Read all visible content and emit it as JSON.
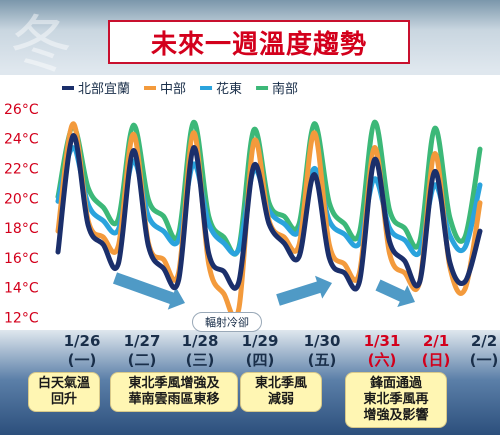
{
  "background_char": "冬",
  "title": "未來一週溫度趨勢",
  "radiation_label": "輻射冷卻",
  "days": [
    {
      "date": "1/26",
      "weekday": "(一)",
      "red": false
    },
    {
      "date": "1/27",
      "weekday": "(二)",
      "red": false
    },
    {
      "date": "1/28",
      "weekday": "(三)",
      "red": false
    },
    {
      "date": "1/29",
      "weekday": "(四)",
      "red": false
    },
    {
      "date": "1/30",
      "weekday": "(五)",
      "red": false
    },
    {
      "date": "1/31",
      "weekday": "(六)",
      "red": true
    },
    {
      "date": "2/1",
      "weekday": "(日)",
      "red": true
    },
    {
      "date": "2/2",
      "weekday": "(一)",
      "red": false
    }
  ],
  "notes": [
    {
      "text": "白天氣溫\n回升"
    },
    {
      "text": "東北季風增強及\n華南雲雨區東移"
    },
    {
      "text": "東北季風\n減弱"
    },
    {
      "text": "鋒面通過\n東北季風再\n增強及影響"
    }
  ],
  "chart_data": {
    "type": "line",
    "ylim": [
      11.5,
      27
    ],
    "yticks": [
      "26°C",
      "24°C",
      "22°C",
      "20°C",
      "18°C",
      "16°C",
      "14°C",
      "12°C"
    ],
    "ytick_values": [
      26,
      24,
      22,
      20,
      18,
      16,
      14,
      12
    ],
    "x_range": [
      0,
      7
    ],
    "legend_position": "top-left",
    "series": [
      {
        "name": "北部宜蘭",
        "color": "#1b2f6b",
        "x": [
          0,
          0.25,
          0.5,
          0.75,
          1.0,
          1.25,
          1.5,
          1.75,
          2.0,
          2.25,
          2.5,
          2.75,
          3.0,
          3.25,
          3.5,
          3.75,
          4.0,
          4.25,
          4.5,
          4.75,
          5.0,
          5.25,
          5.5,
          5.75,
          6.0,
          6.25,
          6.5,
          6.75,
          7.0
        ],
        "y": [
          16.4,
          24.2,
          18.2,
          16.9,
          15.6,
          23.2,
          16.8,
          15.3,
          14.5,
          23.4,
          16.3,
          15.1,
          14.4,
          22.2,
          18.3,
          17.0,
          16.1,
          21.6,
          16.0,
          15.0,
          14.4,
          22.6,
          17.1,
          15.8,
          14.4,
          21.8,
          15.7,
          14.4,
          17.8
        ]
      },
      {
        "name": "中部",
        "color": "#f39a3c",
        "x": [
          0,
          0.25,
          0.5,
          0.75,
          1.0,
          1.25,
          1.5,
          1.75,
          2.0,
          2.25,
          2.5,
          2.75,
          3.0,
          3.25,
          3.5,
          3.75,
          4.0,
          4.25,
          4.5,
          4.75,
          5.0,
          5.25,
          5.5,
          5.75,
          6.0,
          6.25,
          6.5,
          6.75,
          7.0
        ],
        "y": [
          17.8,
          25.0,
          18.5,
          17.4,
          16.8,
          24.3,
          17.0,
          15.9,
          15.0,
          24.4,
          15.6,
          13.6,
          12.6,
          23.8,
          18.5,
          17.4,
          16.9,
          24.4,
          16.9,
          15.6,
          15.0,
          23.4,
          16.3,
          15.0,
          14.4,
          23.0,
          15.4,
          13.9,
          19.7
        ]
      },
      {
        "name": "花東",
        "color": "#2aa3dd",
        "x": [
          0,
          0.25,
          0.5,
          0.75,
          1.0,
          1.25,
          1.5,
          1.75,
          2.0,
          2.25,
          2.5,
          2.75,
          3.0,
          3.25,
          3.5,
          3.75,
          4.0,
          4.25,
          4.5,
          4.75,
          5.0,
          5.25,
          5.5,
          5.75,
          6.0,
          6.25,
          6.5,
          6.75,
          7.0
        ],
        "y": [
          19.8,
          23.4,
          19.6,
          18.5,
          17.9,
          22.5,
          18.8,
          17.8,
          17.2,
          22.3,
          18.3,
          17.0,
          16.6,
          21.9,
          19.2,
          18.3,
          17.8,
          22.0,
          18.5,
          17.6,
          17.0,
          21.3,
          18.0,
          17.2,
          16.4,
          20.9,
          17.5,
          16.7,
          20.9
        ]
      },
      {
        "name": "南部",
        "color": "#3cb878",
        "x": [
          0,
          0.25,
          0.5,
          0.75,
          1.0,
          1.25,
          1.5,
          1.75,
          2.0,
          2.25,
          2.5,
          2.75,
          3.0,
          3.25,
          3.5,
          3.75,
          4.0,
          4.25,
          4.5,
          4.75,
          5.0,
          5.25,
          5.5,
          5.75,
          6.0,
          6.25,
          6.5,
          6.75,
          7.0
        ],
        "y": [
          20.1,
          24.8,
          20.7,
          19.4,
          18.6,
          24.9,
          19.9,
          18.8,
          17.6,
          25.1,
          18.8,
          17.4,
          16.7,
          24.6,
          19.7,
          18.8,
          18.3,
          25.0,
          19.7,
          18.3,
          17.7,
          25.1,
          19.2,
          18.0,
          17.1,
          24.7,
          18.7,
          17.4,
          23.3
        ]
      }
    ]
  }
}
